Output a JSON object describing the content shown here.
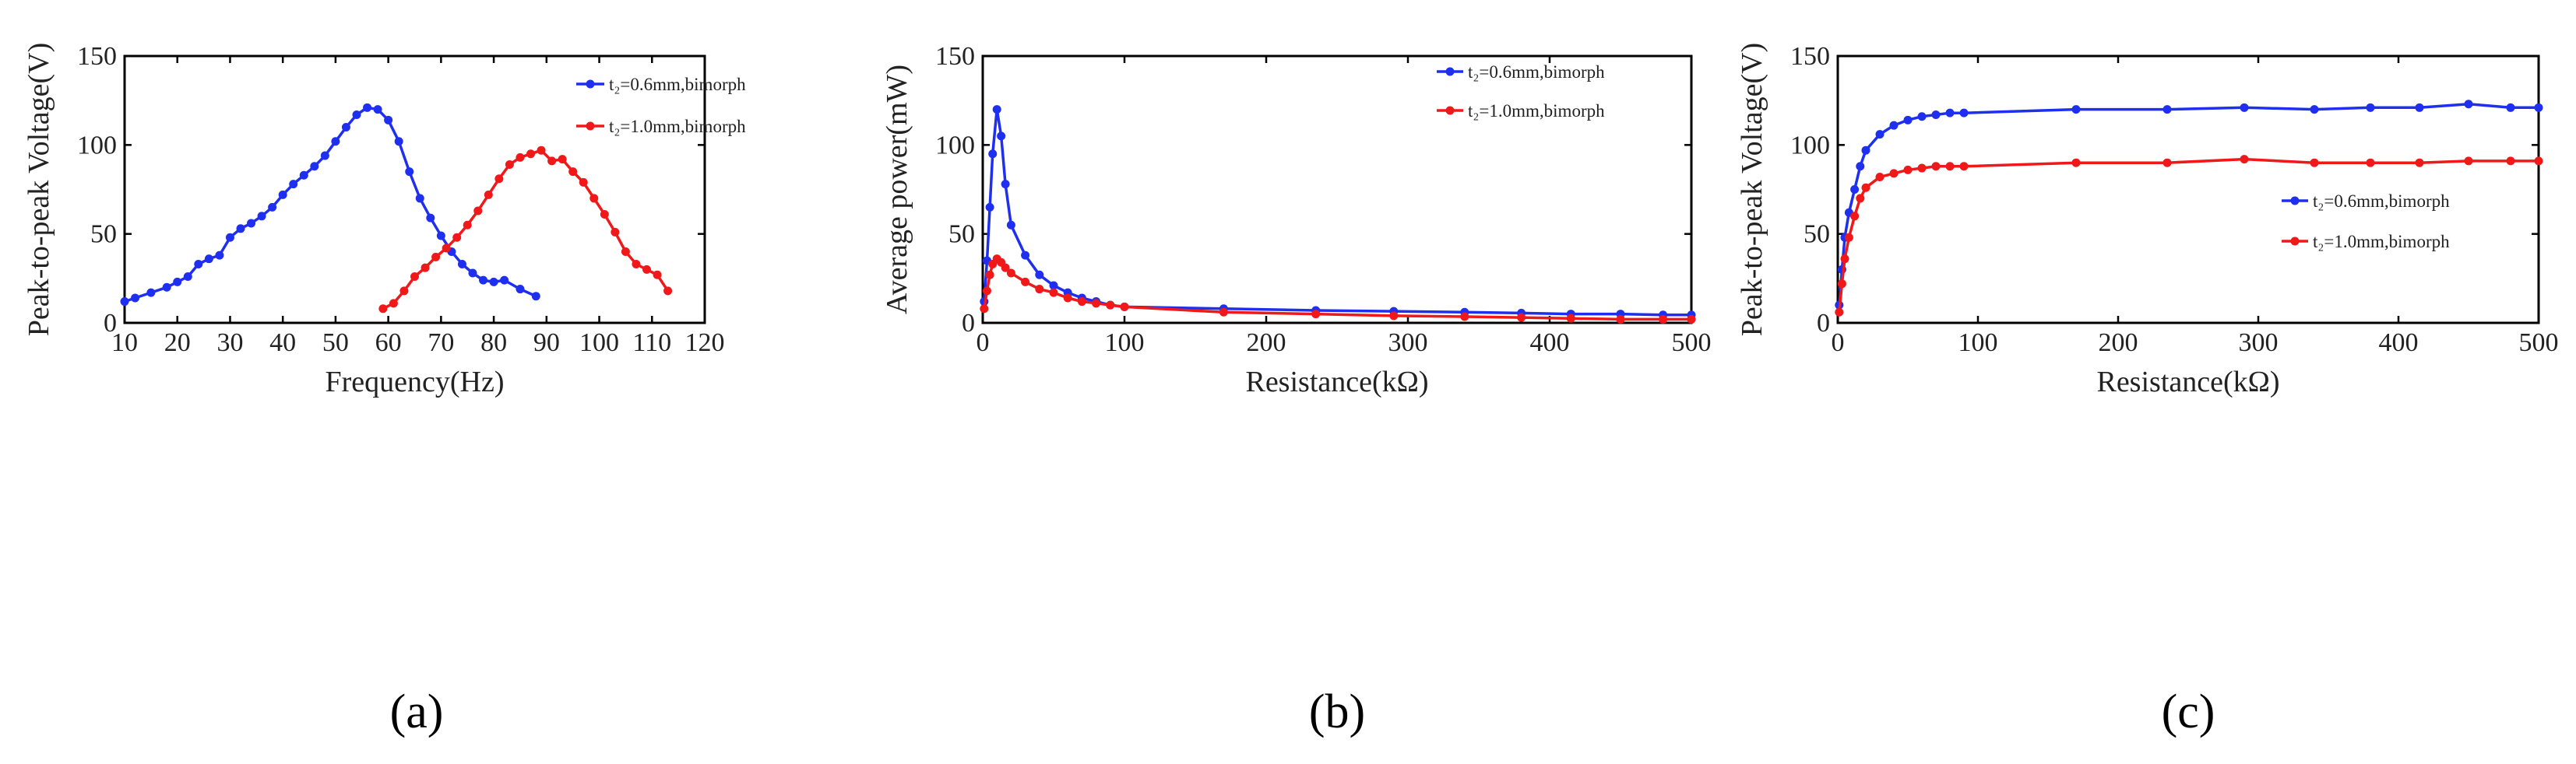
{
  "chart_data": [
    {
      "type": "line",
      "panel_label": "(a)",
      "xlabel": "Frequency(Hz)",
      "ylabel": "Peak-to-peak Voltage(V)",
      "xlim": [
        10,
        120
      ],
      "ylim": [
        0,
        150
      ],
      "xticks": [
        10,
        20,
        30,
        40,
        50,
        60,
        70,
        80,
        90,
        100,
        110,
        120
      ],
      "yticks": [
        0,
        50,
        100,
        150
      ],
      "legend_position": "top-right",
      "series": [
        {
          "name": "t₂=0.6mm,bimorph",
          "color": "#1f2ff0",
          "x": [
            10,
            12,
            15,
            18,
            20,
            22,
            24,
            26,
            28,
            30,
            32,
            34,
            36,
            38,
            40,
            42,
            44,
            46,
            48,
            50,
            52,
            54,
            56,
            58,
            60,
            62,
            64,
            66,
            68,
            70,
            72,
            74,
            76,
            78,
            80,
            82,
            85,
            88
          ],
          "y": [
            12,
            14,
            17,
            20,
            23,
            26,
            33,
            36,
            38,
            48,
            53,
            56,
            60,
            65,
            72,
            78,
            83,
            88,
            94,
            102,
            110,
            117,
            121,
            120,
            114,
            102,
            85,
            70,
            59,
            49,
            40,
            33,
            28,
            24,
            23,
            24,
            19,
            15
          ]
        },
        {
          "name": "t₂=1.0mm,bimorph",
          "color": "#f01818",
          "x": [
            59,
            61,
            63,
            65,
            67,
            69,
            71,
            73,
            75,
            77,
            79,
            81,
            83,
            85,
            87,
            89,
            91,
            93,
            95,
            97,
            99,
            101,
            103,
            105,
            107,
            109,
            111,
            113
          ],
          "y": [
            8,
            11,
            18,
            26,
            31,
            37,
            42,
            48,
            55,
            63,
            72,
            81,
            89,
            93,
            95,
            97,
            91,
            92,
            85,
            79,
            70,
            61,
            51,
            40,
            33,
            30,
            27,
            18
          ]
        }
      ]
    },
    {
      "type": "line",
      "panel_label": "(b)",
      "xlabel": "Resistance(kΩ)",
      "ylabel": "Average power(mW)",
      "xlim": [
        0,
        500
      ],
      "ylim": [
        0,
        150
      ],
      "xticks": [
        0,
        100,
        200,
        300,
        400,
        500
      ],
      "yticks": [
        0,
        50,
        100,
        150
      ],
      "legend_position": "top-right",
      "series": [
        {
          "name": "t₂=0.6mm,bimorph",
          "color": "#1f2ff0",
          "x": [
            1,
            3,
            5,
            7,
            10,
            13,
            16,
            20,
            30,
            40,
            50,
            60,
            70,
            80,
            90,
            100,
            170,
            235,
            290,
            340,
            380,
            415,
            450,
            480,
            500
          ],
          "y": [
            12,
            35,
            65,
            95,
            120,
            105,
            78,
            55,
            38,
            27,
            21,
            17,
            14,
            12,
            10,
            9,
            8,
            7,
            6.5,
            6,
            5.5,
            5,
            5,
            4.5,
            4.5
          ]
        },
        {
          "name": "t₂=1.0mm,bimorph",
          "color": "#f01818",
          "x": [
            1,
            3,
            5,
            7,
            10,
            13,
            16,
            20,
            30,
            40,
            50,
            60,
            70,
            80,
            90,
            100,
            170,
            235,
            290,
            340,
            380,
            415,
            450,
            480,
            500
          ],
          "y": [
            8,
            18,
            27,
            33,
            36,
            34,
            31,
            28,
            23,
            19,
            17,
            14,
            12,
            11,
            10,
            9,
            6,
            5,
            4,
            3.5,
            3,
            2.5,
            2,
            2,
            2
          ]
        }
      ]
    },
    {
      "type": "line",
      "panel_label": "(c)",
      "xlabel": "Resistance(kΩ)",
      "ylabel": "Peak-to-peak Voltage(V)",
      "xlim": [
        0,
        500
      ],
      "ylim": [
        0,
        150
      ],
      "xticks": [
        0,
        100,
        200,
        300,
        400,
        500
      ],
      "yticks": [
        0,
        50,
        100,
        150
      ],
      "legend_position": "center-right",
      "series": [
        {
          "name": "t₂=0.6mm,bimorph",
          "color": "#1f2ff0",
          "x": [
            1,
            3,
            5,
            8,
            12,
            16,
            20,
            30,
            40,
            50,
            60,
            70,
            80,
            90,
            170,
            235,
            290,
            340,
            380,
            415,
            450,
            480,
            500
          ],
          "y": [
            10,
            30,
            48,
            62,
            75,
            88,
            97,
            106,
            111,
            114,
            116,
            117,
            118,
            118,
            120,
            120,
            121,
            120,
            121,
            121,
            123,
            121,
            121
          ]
        },
        {
          "name": "t₂=1.0mm,bimorph",
          "color": "#f01818",
          "x": [
            1,
            3,
            5,
            8,
            12,
            16,
            20,
            30,
            40,
            50,
            60,
            70,
            80,
            90,
            170,
            235,
            290,
            340,
            380,
            415,
            450,
            480,
            500
          ],
          "y": [
            6,
            22,
            36,
            48,
            60,
            70,
            76,
            82,
            84,
            86,
            87,
            88,
            88,
            88,
            90,
            90,
            92,
            90,
            90,
            90,
            91,
            91,
            91
          ]
        }
      ]
    }
  ]
}
